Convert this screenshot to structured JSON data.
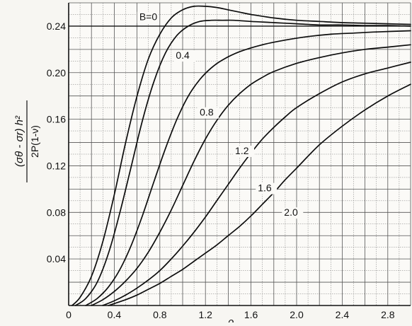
{
  "chart_data": {
    "type": "line",
    "title": "",
    "xlabel": "ρ",
    "ylabel": "(σθ - σr) h² / 2P(1-ν)",
    "ylabel_numerator": "(σθ - σr) h²",
    "ylabel_denominator": "2P(1-ν)",
    "xlim": [
      0,
      3.0
    ],
    "ylim": [
      0,
      0.26
    ],
    "xticks": [
      "0",
      "0.4",
      "0.8",
      "1.2",
      "1.6",
      "2.0",
      "2.4",
      "2.8"
    ],
    "xtick_values": [
      0,
      0.4,
      0.8,
      1.2,
      1.6,
      2.0,
      2.4,
      2.8
    ],
    "yticks": [
      "0.04",
      "0.08",
      "0.12",
      "0.16",
      "0.20",
      "0.24"
    ],
    "ytick_values": [
      0.04,
      0.08,
      0.12,
      0.16,
      0.2,
      0.24
    ],
    "grid": true,
    "reference_line_y": 0.24,
    "series": [
      {
        "name": "B=0",
        "label_at": [
          0.62,
          0.245
        ],
        "x": [
          0.03,
          0.1,
          0.2,
          0.3,
          0.4,
          0.5,
          0.6,
          0.7,
          0.8,
          0.9,
          1.0,
          1.1,
          1.2,
          1.3,
          1.4,
          1.5,
          1.6,
          1.8,
          2.0,
          2.2,
          2.4,
          2.6,
          2.8,
          3.0
        ],
        "y": [
          0.0,
          0.007,
          0.025,
          0.055,
          0.095,
          0.14,
          0.18,
          0.212,
          0.233,
          0.247,
          0.254,
          0.257,
          0.257,
          0.256,
          0.254,
          0.252,
          0.25,
          0.247,
          0.245,
          0.244,
          0.243,
          0.2425,
          0.242,
          0.2415
        ]
      },
      {
        "name": "0.4",
        "label_at": [
          0.94,
          0.212
        ],
        "x": [
          0.06,
          0.15,
          0.25,
          0.35,
          0.45,
          0.55,
          0.65,
          0.75,
          0.85,
          0.95,
          1.05,
          1.15,
          1.25,
          1.35,
          1.45,
          1.6,
          1.8,
          2.0,
          2.2,
          2.4,
          2.6,
          2.8,
          3.0
        ],
        "y": [
          0.0,
          0.006,
          0.02,
          0.045,
          0.08,
          0.12,
          0.16,
          0.193,
          0.217,
          0.232,
          0.24,
          0.244,
          0.245,
          0.245,
          0.245,
          0.244,
          0.243,
          0.242,
          0.241,
          0.241,
          0.2405,
          0.2405,
          0.24
        ]
      },
      {
        "name": "0.8",
        "label_at": [
          1.15,
          0.163
        ],
        "x": [
          0.15,
          0.25,
          0.35,
          0.45,
          0.55,
          0.65,
          0.75,
          0.85,
          0.95,
          1.05,
          1.15,
          1.25,
          1.35,
          1.5,
          1.7,
          1.9,
          2.1,
          2.3,
          2.5,
          2.7,
          3.0
        ],
        "y": [
          0.0,
          0.006,
          0.016,
          0.031,
          0.052,
          0.078,
          0.107,
          0.135,
          0.16,
          0.18,
          0.194,
          0.204,
          0.211,
          0.218,
          0.224,
          0.228,
          0.231,
          0.233,
          0.234,
          0.235,
          0.236
        ]
      },
      {
        "name": "1.2",
        "label_at": [
          1.46,
          0.13
        ],
        "x": [
          0.2,
          0.3,
          0.4,
          0.5,
          0.6,
          0.7,
          0.8,
          0.9,
          1.0,
          1.1,
          1.2,
          1.3,
          1.4,
          1.5,
          1.6,
          1.7,
          1.8,
          2.0,
          2.2,
          2.4,
          2.6,
          2.8,
          3.0
        ],
        "y": [
          0.0,
          0.005,
          0.012,
          0.021,
          0.032,
          0.046,
          0.063,
          0.082,
          0.103,
          0.124,
          0.143,
          0.159,
          0.172,
          0.182,
          0.19,
          0.196,
          0.201,
          0.208,
          0.213,
          0.217,
          0.22,
          0.222,
          0.224
        ]
      },
      {
        "name": "1.6",
        "label_at": [
          1.66,
          0.098
        ],
        "x": [
          0.3,
          0.4,
          0.5,
          0.6,
          0.7,
          0.8,
          0.9,
          1.0,
          1.1,
          1.2,
          1.3,
          1.4,
          1.5,
          1.6,
          1.7,
          1.8,
          1.9,
          2.0,
          2.2,
          2.4,
          2.6,
          2.8,
          3.0
        ],
        "y": [
          0.0,
          0.004,
          0.009,
          0.015,
          0.022,
          0.03,
          0.04,
          0.051,
          0.063,
          0.076,
          0.09,
          0.104,
          0.118,
          0.131,
          0.143,
          0.153,
          0.162,
          0.17,
          0.182,
          0.192,
          0.199,
          0.204,
          0.209
        ]
      },
      {
        "name": "2.0",
        "label_at": [
          1.89,
          0.077
        ],
        "x": [
          0.35,
          0.5,
          0.6,
          0.7,
          0.8,
          0.9,
          1.0,
          1.1,
          1.2,
          1.3,
          1.4,
          1.5,
          1.6,
          1.7,
          1.8,
          1.9,
          2.0,
          2.2,
          2.4,
          2.6,
          2.8,
          3.0
        ],
        "y": [
          0.0,
          0.005,
          0.009,
          0.014,
          0.019,
          0.025,
          0.031,
          0.038,
          0.045,
          0.052,
          0.06,
          0.068,
          0.077,
          0.087,
          0.097,
          0.108,
          0.118,
          0.138,
          0.154,
          0.168,
          0.18,
          0.19
        ]
      }
    ]
  }
}
